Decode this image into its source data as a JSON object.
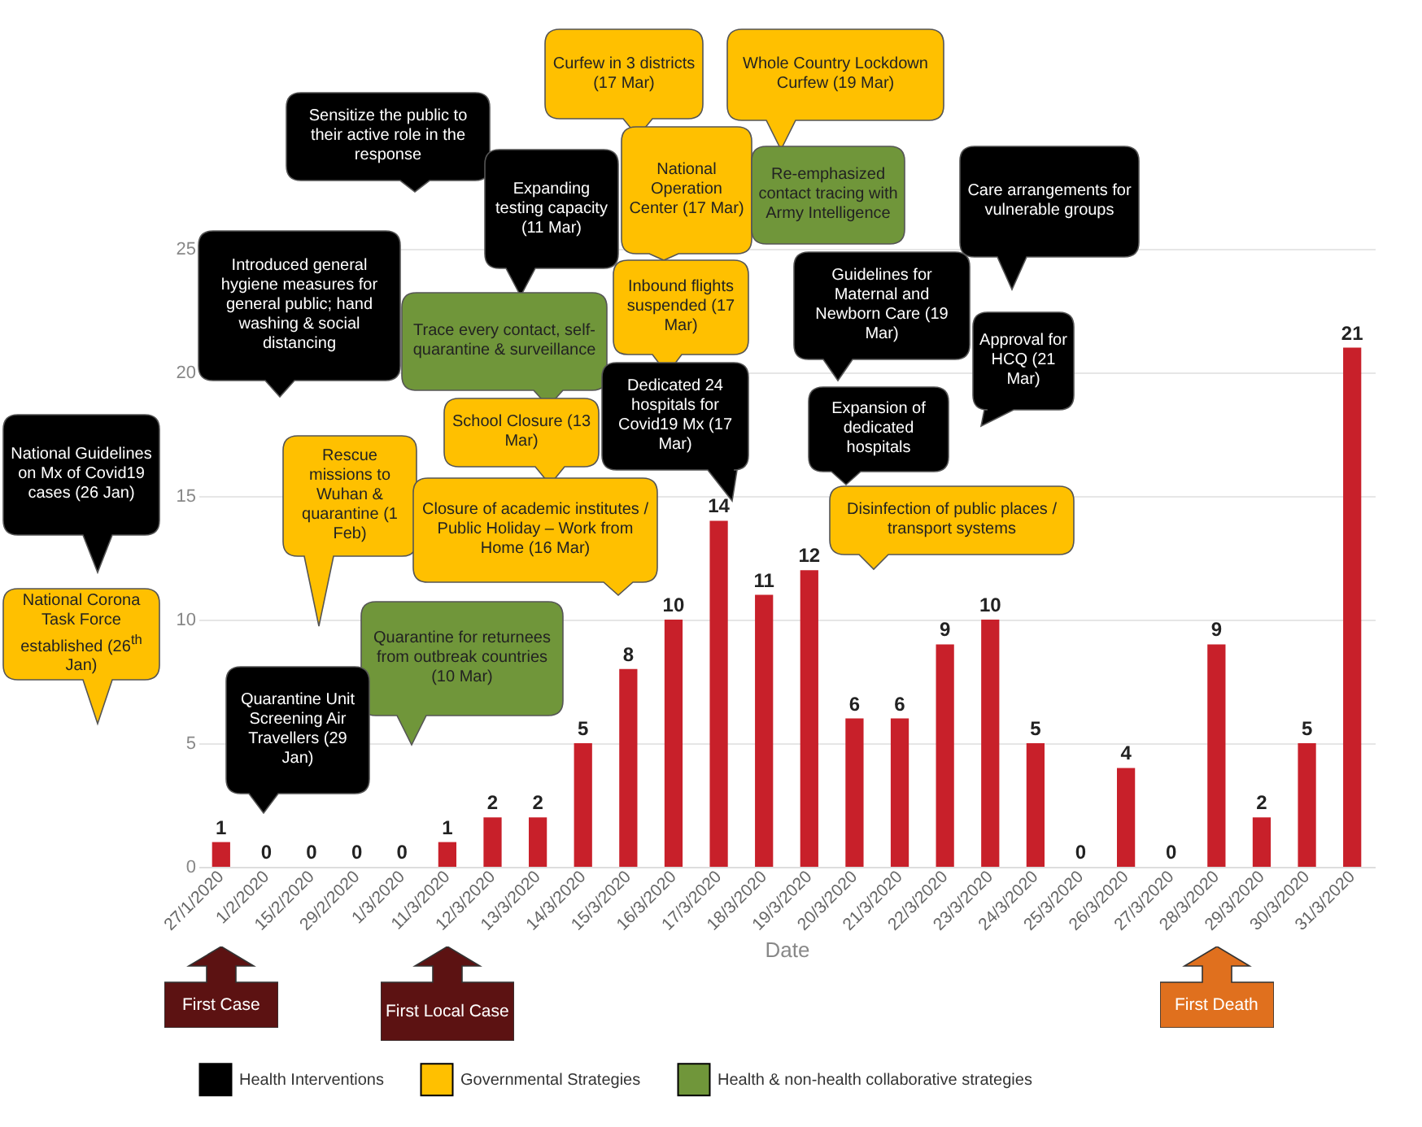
{
  "chart_data": {
    "type": "bar",
    "xlabel": "Date",
    "categories": [
      "27/1/2020",
      "1/2/2020",
      "15/2/2020",
      "29/2/2020",
      "1/3/2020",
      "11/3/2020",
      "12/3/2020",
      "13/3/2020",
      "14/3/2020",
      "15/3/2020",
      "16/3/2020",
      "17/3/2020",
      "18/3/2020",
      "19/3/2020",
      "20/3/2020",
      "21/3/2020",
      "22/3/2020",
      "23/3/2020",
      "24/3/2020",
      "25/3/2020",
      "26/3/2020",
      "27/3/2020",
      "28/3/2020",
      "29/3/2020",
      "30/3/2020",
      "31/3/2020"
    ],
    "series": [
      {
        "color": "#c8202a",
        "values": [
          1,
          0,
          0,
          0,
          0,
          1,
          2,
          2,
          5,
          8,
          10,
          14,
          11,
          12,
          6,
          6,
          9,
          10,
          5,
          0,
          4,
          0,
          9,
          2,
          5,
          21
        ]
      },
      {
        "name": "Health Interventions",
        "color": "#000000",
        "values": [
          null,
          null,
          null,
          null,
          null,
          null,
          null,
          null,
          null,
          null,
          null,
          null,
          null,
          null,
          null,
          null,
          null,
          null,
          null,
          null,
          null,
          null,
          null,
          null,
          null,
          null
        ]
      },
      {
        "name": "Governmental Strategies",
        "color": "#ffc000",
        "values": [
          null,
          null,
          null,
          null,
          null,
          null,
          null,
          null,
          null,
          null,
          null,
          null,
          null,
          null,
          null,
          null,
          null,
          null,
          null,
          null,
          null,
          null,
          null,
          null,
          null,
          null
        ]
      },
      {
        "name": "Health & non-health collaborative strategies",
        "color": "#70963a",
        "values": [
          null,
          null,
          null,
          null,
          null,
          null,
          null,
          null,
          null,
          null,
          null,
          null,
          null,
          null,
          null,
          null,
          null,
          null,
          null,
          null,
          null,
          null,
          null,
          null,
          null,
          null
        ]
      }
    ],
    "ylim": [
      0,
      25
    ],
    "yticks": [
      0,
      5,
      10,
      15,
      20,
      25
    ],
    "grid": "y",
    "data_labels": true,
    "legend": "bottom",
    "annotations": [
      "Curfew in 3 districts (17 Mar)",
      "Whole Country Lockdown Curfew (19 Mar)",
      "Sensitize the public to their active role in the response",
      "Expanding testing capacity (11 Mar)",
      "National Operation Center (17 Mar)",
      "Re-emphasized contact tracing with Army Intelligence",
      "Care arrangements for vulnerable groups",
      "Introduced general hygiene measures for general public; hand washing & social distancing",
      "Trace every contact, self-quarantine & surveillance",
      "Inbound flights suspended (17 Mar)",
      "Guidelines for Maternal and Newborn Care (19 Mar)",
      "Approval for HCQ (21 Mar)",
      "Dedicated 24 hospitals for Covid19 Mx (17 Mar)",
      "School Closure (13 Mar)",
      "Expansion of dedicated hospitals",
      "National Guidelines on Mx of Covid19 cases (26 Jan)",
      "Rescue missions to Wuhan & quarantine (1 Feb)",
      "Closure of academic institutes / Public Holiday – Work from Home (16 Mar)",
      "Disinfection of public places / transport systems",
      "National Corona Task Force established (26$^{th}$ Jan)",
      "Quarantine for returnees from outbreak countries (10 Mar)",
      "Quarantine Unit Screening Air Travellers (29 Jan)",
      "First Case",
      "First Local Case",
      "First Death"
    ]
  }
}
